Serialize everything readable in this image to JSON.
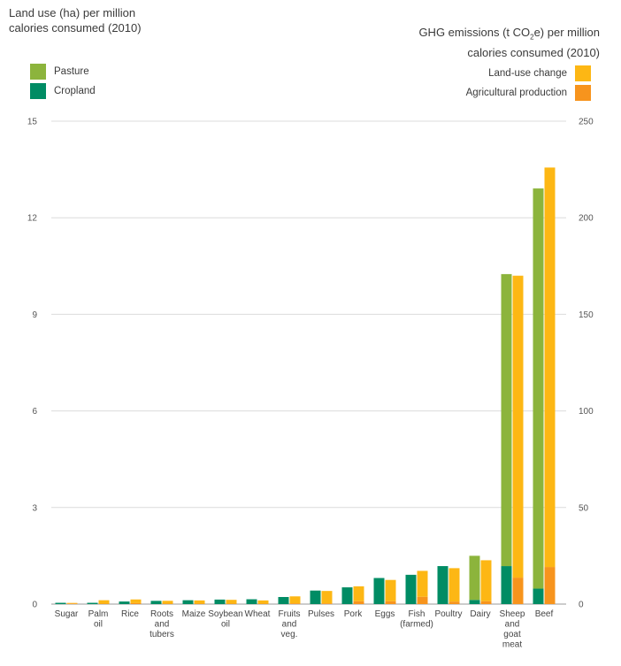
{
  "chart_data": {
    "type": "bar",
    "title_left": [
      "Land use (ha) per million",
      "calories consumed (2010)"
    ],
    "title_right": [
      "GHG emissions (t CO₂e) per million",
      "calories consumed (2010)"
    ],
    "left_axis": {
      "label": "Land use (ha) per million calories consumed (2010)",
      "ylim": [
        0,
        15
      ],
      "ticks": [
        "0",
        "3",
        "6",
        "9",
        "12",
        "15"
      ]
    },
    "right_axis": {
      "label": "GHG emissions (t CO2e) per million calories consumed (2010)",
      "ylim": [
        0,
        250
      ],
      "ticks": [
        "0",
        "50",
        "100",
        "150",
        "200",
        "250"
      ]
    },
    "categories": [
      [
        "Sugar"
      ],
      [
        "Palm",
        "oil"
      ],
      [
        "Rice"
      ],
      [
        "Roots",
        "and",
        "tubers"
      ],
      [
        "Maize"
      ],
      [
        "Soybean",
        "oil"
      ],
      [
        "Wheat"
      ],
      [
        "Fruits",
        "and",
        "veg."
      ],
      [
        "Pulses"
      ],
      [
        "Pork"
      ],
      [
        "Eggs"
      ],
      [
        "Fish",
        "(farmed)"
      ],
      [
        "Poultry"
      ],
      [
        "Dairy"
      ],
      [
        "Sheep",
        "and",
        "goat",
        "meat"
      ],
      [
        "Beef"
      ]
    ],
    "land_use": {
      "axis": "left",
      "series": [
        {
          "name": "Cropland",
          "color": "#008c64",
          "values": [
            0.04,
            0.04,
            0.08,
            0.1,
            0.12,
            0.14,
            0.15,
            0.22,
            0.42,
            0.52,
            0.81,
            0.91,
            1.18,
            0.13,
            1.18,
            0.48
          ]
        },
        {
          "name": "Pasture",
          "color": "#8cb43c",
          "values": [
            0,
            0,
            0,
            0,
            0,
            0,
            0,
            0,
            0,
            0,
            0,
            0,
            0,
            1.37,
            9.07,
            12.43
          ]
        }
      ]
    },
    "ghg": {
      "axis": "right",
      "series": [
        {
          "name": "Agricultural production",
          "color": "#f7941d",
          "values": [
            0.3,
            0.2,
            0.5,
            0.2,
            0.2,
            0.2,
            0.2,
            0.4,
            0.4,
            1.5,
            1.5,
            3.8,
            1.3,
            1.5,
            13.7,
            19.2
          ]
        },
        {
          "name": "Land-use change",
          "color": "#fdb714",
          "values": [
            0.3,
            1.8,
            1.9,
            1.5,
            1.7,
            2.0,
            1.7,
            3.6,
            6.4,
            7.7,
            11.0,
            13.4,
            17.3,
            21.2,
            156.3,
            206.8
          ]
        }
      ]
    },
    "legend": {
      "left": [
        {
          "label": "Pasture",
          "color": "#8cb43c"
        },
        {
          "label": "Cropland",
          "color": "#008c64"
        }
      ],
      "right": [
        {
          "label": "Land-use change",
          "color": "#fdb714"
        },
        {
          "label": "Agricultural production",
          "color": "#f7941d"
        }
      ]
    },
    "grid": true
  }
}
